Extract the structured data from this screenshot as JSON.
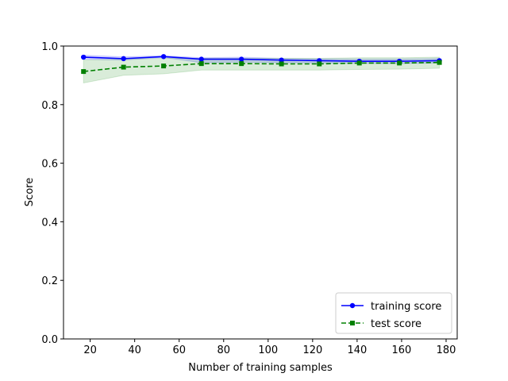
{
  "chart_data": {
    "type": "line",
    "xlabel": "Number of training samples",
    "ylabel": "Score",
    "xlim": [
      8,
      185
    ],
    "ylim": [
      0.0,
      1.0
    ],
    "x_ticks": [
      20,
      40,
      60,
      80,
      100,
      120,
      140,
      160,
      180
    ],
    "y_ticks": [
      0.0,
      0.2,
      0.4,
      0.6,
      0.8,
      1.0
    ],
    "y_tick_labels": [
      "0.0",
      "0.2",
      "0.4",
      "0.6",
      "0.8",
      "1.0"
    ],
    "grid": false,
    "legend_position": "lower-right",
    "x": [
      17,
      35,
      53,
      70,
      88,
      106,
      123,
      141,
      159,
      177
    ],
    "series": [
      {
        "name": "training score",
        "color": "#0000ff",
        "line_style": "solid",
        "marker": "circle",
        "values": [
          0.962,
          0.957,
          0.964,
          0.955,
          0.955,
          0.952,
          0.95,
          0.948,
          0.948,
          0.95
        ],
        "band_lower": [
          0.955,
          0.952,
          0.961,
          0.943,
          0.945,
          0.943,
          0.942,
          0.941,
          0.94,
          0.942
        ],
        "band_upper": [
          0.969,
          0.963,
          0.967,
          0.96,
          0.962,
          0.958,
          0.956,
          0.955,
          0.955,
          0.957
        ]
      },
      {
        "name": "test score",
        "color": "#008000",
        "line_style": "dashed",
        "marker": "square",
        "values": [
          0.913,
          0.928,
          0.932,
          0.94,
          0.94,
          0.939,
          0.939,
          0.942,
          0.942,
          0.944
        ],
        "band_lower": [
          0.874,
          0.9,
          0.905,
          0.918,
          0.918,
          0.918,
          0.918,
          0.92,
          0.921,
          0.924
        ],
        "band_upper": [
          0.952,
          0.956,
          0.958,
          0.958,
          0.958,
          0.958,
          0.958,
          0.96,
          0.96,
          0.962
        ]
      }
    ]
  }
}
